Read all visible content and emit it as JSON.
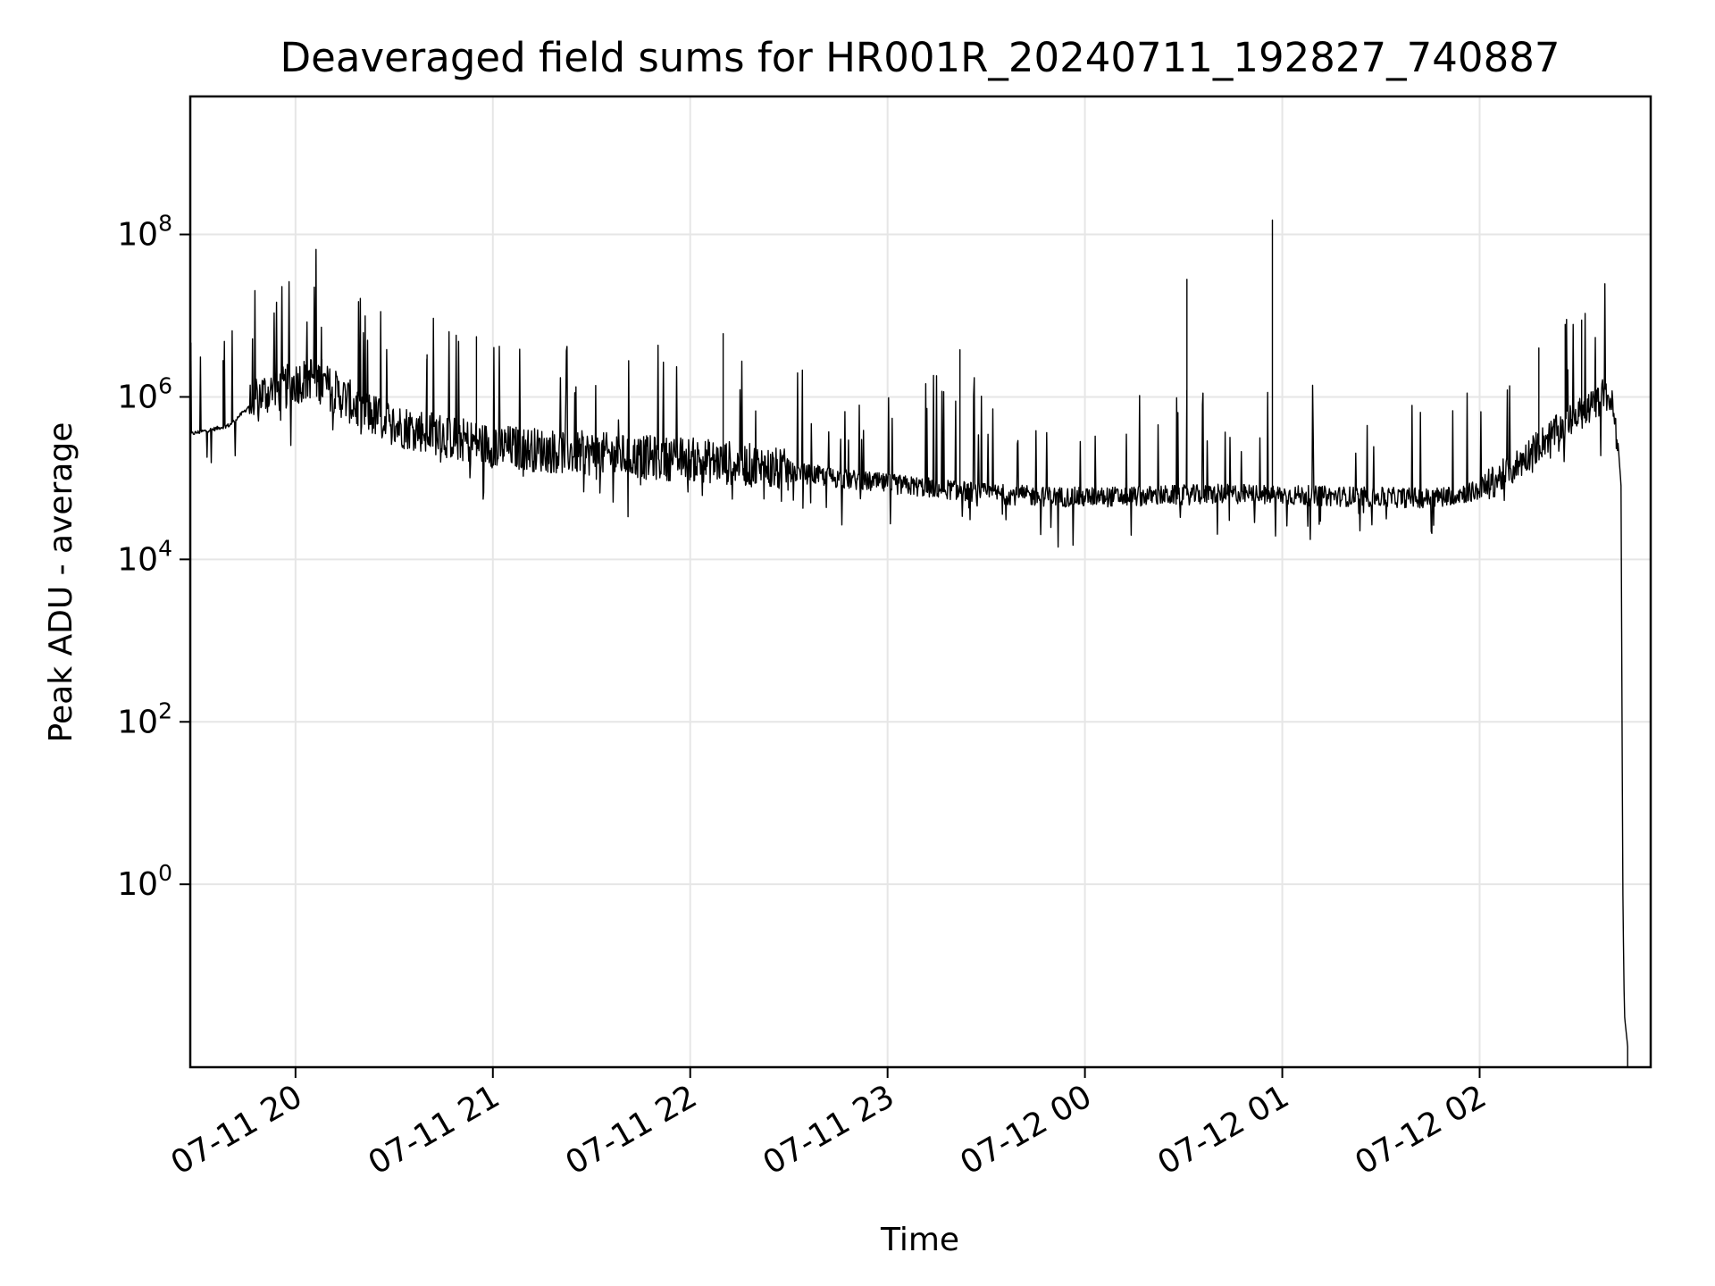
{
  "chart_data": {
    "type": "line",
    "title": "Deaveraged field sums for HR001R_20240711_192827_740887",
    "xlabel": "Time",
    "ylabel": "Peak ADU - average",
    "yscale": "log",
    "grid": true,
    "line_color": "#000000",
    "x_ticks": [
      "07-11 20",
      "07-11 21",
      "07-11 22",
      "07-11 23",
      "07-12 00",
      "07-12 01",
      "07-12 02"
    ],
    "y_ticks": [
      {
        "base": "10",
        "exp": "0"
      },
      {
        "base": "10",
        "exp": "2"
      },
      {
        "base": "10",
        "exp": "4"
      },
      {
        "base": "10",
        "exp": "6"
      },
      {
        "base": "10",
        "exp": "8"
      }
    ],
    "xlim": [
      "2024-07-11 19:28",
      "2024-07-12 02:52"
    ],
    "ylim": [
      0.0056,
      5000000000
    ],
    "x": [
      "2024-07-11 19:28",
      "2024-07-11 19:35",
      "2024-07-11 19:40",
      "2024-07-11 19:45",
      "2024-07-11 19:48",
      "2024-07-11 19:50",
      "2024-07-11 19:55",
      "2024-07-11 20:00",
      "2024-07-11 20:05",
      "2024-07-11 20:10",
      "2024-07-11 20:20",
      "2024-07-11 20:30",
      "2024-07-11 20:40",
      "2024-07-11 20:50",
      "2024-07-11 21:00",
      "2024-07-11 21:15",
      "2024-07-11 21:30",
      "2024-07-11 21:45",
      "2024-07-11 22:00",
      "2024-07-11 22:15",
      "2024-07-11 22:30",
      "2024-07-11 22:45",
      "2024-07-11 23:00",
      "2024-07-11 23:15",
      "2024-07-11 23:30",
      "2024-07-11 23:45",
      "2024-07-12 00:00",
      "2024-07-12 00:15",
      "2024-07-12 00:30",
      "2024-07-12 00:45",
      "2024-07-12 01:00",
      "2024-07-12 01:15",
      "2024-07-12 01:30",
      "2024-07-12 01:45",
      "2024-07-12 02:00",
      "2024-07-12 02:10",
      "2024-07-12 02:20",
      "2024-07-12 02:30",
      "2024-07-12 02:35",
      "2024-07-12 02:38",
      "2024-07-12 02:40",
      "2024-07-12 02:42",
      "2024-07-12 02:43",
      "2024-07-12 02:43:30",
      "2024-07-12 02:44",
      "2024-07-12 02:45"
    ],
    "y": [
      350000,
      400000,
      450000,
      700000,
      1000000,
      1100000,
      1200000,
      1500000,
      1800000,
      1300000,
      700000,
      450000,
      380000,
      300000,
      250000,
      220000,
      200000,
      180000,
      170000,
      150000,
      120000,
      100000,
      85000,
      75000,
      65000,
      60000,
      58000,
      60000,
      62000,
      64000,
      62000,
      60000,
      58000,
      57000,
      70000,
      130000,
      300000,
      600000,
      800000,
      1100000,
      900000,
      300000,
      80000,
      1,
      0.025,
      0.01
    ],
    "spikes": [
      {
        "x": "2024-07-11 19:38",
        "y": 2800000
      },
      {
        "x": "2024-07-11 20:08",
        "y": 2900000
      },
      {
        "x": "2024-07-11 20:40",
        "y": 3300000
      },
      {
        "x": "2024-07-11 20:55",
        "y": 5500000
      },
      {
        "x": "2024-07-11 22:10",
        "y": 6000000
      },
      {
        "x": "2024-07-11 23:22",
        "y": 3800000
      },
      {
        "x": "2024-07-12 00:31",
        "y": 28000000
      },
      {
        "x": "2024-07-12 00:57",
        "y": 150000000
      },
      {
        "x": "2024-07-12 02:18",
        "y": 4000000
      },
      {
        "x": "2024-07-12 02:26",
        "y": 7800000
      },
      {
        "x": "2024-07-12 02:31",
        "y": 8800000
      }
    ]
  }
}
